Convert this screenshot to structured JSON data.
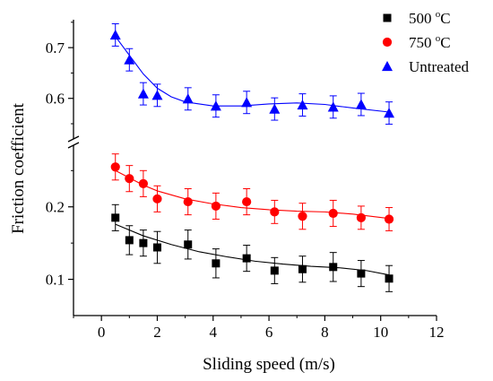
{
  "chart_data": {
    "type": "scatter",
    "title": "",
    "xlabel": "Sliding speed (m/s)",
    "ylabel": "Friction coefficient",
    "xlim": [
      -1,
      12
    ],
    "xticks": [
      0,
      2,
      4,
      6,
      8,
      10,
      12
    ],
    "xtick_labels": [
      "0",
      "2",
      "4",
      "6",
      "8",
      "10",
      "12"
    ],
    "y_axis_broken": true,
    "ylim_lower": [
      0.05,
      0.285
    ],
    "ylim_upper": [
      0.52,
      0.755
    ],
    "yticks_lower": [
      0.1,
      0.2
    ],
    "ytick_labels_lower": [
      "0.1",
      "0.2"
    ],
    "yticks_upper": [
      0.6,
      0.7
    ],
    "ytick_labels_upper": [
      "0.6",
      "0.7"
    ],
    "legend_position": "top-right",
    "grid": false,
    "series": [
      {
        "name": "500 °C",
        "name_base": "500 ",
        "name_sup": "o",
        "name_unit": "C",
        "marker": "square",
        "color": "#000000",
        "x": [
          0.5,
          1.0,
          1.5,
          2.0,
          3.1,
          4.1,
          5.2,
          6.2,
          7.2,
          8.3,
          9.3,
          10.3
        ],
        "y": [
          0.185,
          0.154,
          0.15,
          0.144,
          0.148,
          0.122,
          0.129,
          0.112,
          0.114,
          0.117,
          0.108,
          0.101
        ],
        "error": [
          0.018,
          0.02,
          0.018,
          0.022,
          0.02,
          0.02,
          0.018,
          0.018,
          0.018,
          0.02,
          0.018,
          0.018
        ],
        "fit": [
          [
            0.5,
            0.176
          ],
          [
            1.5,
            0.16
          ],
          [
            2.5,
            0.148
          ],
          [
            3.5,
            0.138
          ],
          [
            4.5,
            0.131
          ],
          [
            5.5,
            0.125
          ],
          [
            6.5,
            0.121
          ],
          [
            7.5,
            0.118
          ],
          [
            8.5,
            0.116
          ],
          [
            9.5,
            0.112
          ],
          [
            10.3,
            0.106
          ]
        ]
      },
      {
        "name": "750 °C",
        "name_base": "750 ",
        "name_sup": "o",
        "name_unit": "C",
        "marker": "circle",
        "color": "#ff0000",
        "x": [
          0.5,
          1.0,
          1.5,
          2.0,
          3.1,
          4.1,
          5.2,
          6.2,
          7.2,
          8.3,
          9.3,
          10.3
        ],
        "y": [
          0.255,
          0.239,
          0.232,
          0.211,
          0.207,
          0.201,
          0.207,
          0.193,
          0.187,
          0.191,
          0.185,
          0.183
        ],
        "error": [
          0.018,
          0.018,
          0.018,
          0.018,
          0.018,
          0.018,
          0.018,
          0.016,
          0.018,
          0.018,
          0.016,
          0.016
        ],
        "fit": [
          [
            0.5,
            0.25
          ],
          [
            1.0,
            0.24
          ],
          [
            1.5,
            0.23
          ],
          [
            2.0,
            0.222
          ],
          [
            3.0,
            0.211
          ],
          [
            4.0,
            0.204
          ],
          [
            5.0,
            0.199
          ],
          [
            6.0,
            0.196
          ],
          [
            7.0,
            0.194
          ],
          [
            8.0,
            0.193
          ],
          [
            9.0,
            0.19
          ],
          [
            10.3,
            0.184
          ]
        ]
      },
      {
        "name": "Untreated",
        "marker": "triangle",
        "color": "#0000ff",
        "x": [
          0.5,
          1.0,
          1.5,
          2.0,
          3.1,
          4.1,
          5.2,
          6.2,
          7.2,
          8.3,
          9.3,
          10.3
        ],
        "y": [
          0.725,
          0.676,
          0.609,
          0.606,
          0.599,
          0.585,
          0.592,
          0.579,
          0.587,
          0.583,
          0.588,
          0.571
        ],
        "error": [
          0.022,
          0.022,
          0.022,
          0.022,
          0.022,
          0.022,
          0.022,
          0.022,
          0.022,
          0.022,
          0.022,
          0.022
        ],
        "fit": [
          [
            0.5,
            0.722
          ],
          [
            1.0,
            0.685
          ],
          [
            1.5,
            0.648
          ],
          [
            2.0,
            0.62
          ],
          [
            2.5,
            0.603
          ],
          [
            3.0,
            0.593
          ],
          [
            4.0,
            0.585
          ],
          [
            5.0,
            0.585
          ],
          [
            6.0,
            0.589
          ],
          [
            7.0,
            0.591
          ],
          [
            8.0,
            0.588
          ],
          [
            9.0,
            0.581
          ],
          [
            10.3,
            0.573
          ]
        ]
      }
    ]
  }
}
